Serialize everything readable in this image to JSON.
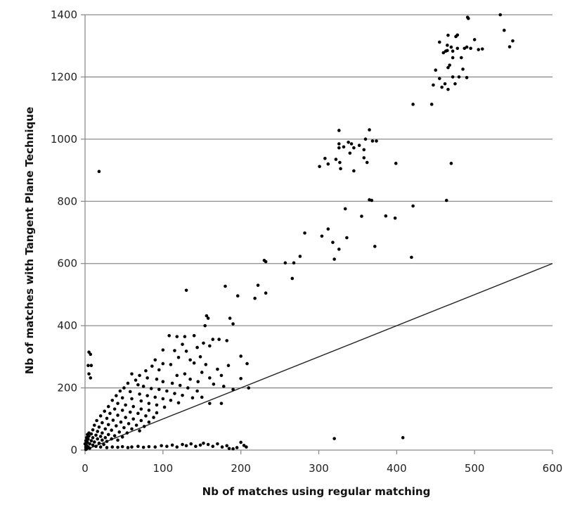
{
  "chart_data": {
    "type": "scatter",
    "title": "",
    "xlabel": "Nb of matches using regular matching",
    "ylabel": "Nb of matches with Tangent Plane Technique",
    "xlim": [
      0,
      600
    ],
    "ylim": [
      0,
      1400
    ],
    "x_ticks": [
      0,
      100,
      200,
      300,
      400,
      500,
      600
    ],
    "y_ticks": [
      0,
      200,
      400,
      600,
      800,
      1000,
      1200,
      1400
    ],
    "grid": {
      "horizontal": true,
      "vertical": false
    },
    "legend": null,
    "reference_line": {
      "label": "y = x",
      "from": [
        0,
        0
      ],
      "to": [
        600,
        600
      ]
    },
    "colors": {
      "points": "#000000",
      "grid": "#8c8c8c",
      "axis": "#8c8c8c",
      "reference_line": "#222222"
    },
    "series": [
      {
        "name": "matches",
        "points": [
          [
            533,
            1400
          ],
          [
            491,
            1392
          ],
          [
            492,
            1388
          ],
          [
            538,
            1350
          ],
          [
            549,
            1316
          ],
          [
            545,
            1297
          ],
          [
            510,
            1290
          ],
          [
            505,
            1288
          ],
          [
            478,
            1335
          ],
          [
            476,
            1330
          ],
          [
            466,
            1334
          ],
          [
            455,
            1312
          ],
          [
            465,
            1302
          ],
          [
            470,
            1296
          ],
          [
            463,
            1283
          ],
          [
            472,
            1283
          ],
          [
            490,
            1296
          ],
          [
            500,
            1320
          ],
          [
            495,
            1292
          ],
          [
            487,
            1292
          ],
          [
            478,
            1292
          ],
          [
            465,
            1285
          ],
          [
            460,
            1278
          ],
          [
            483,
            1262
          ],
          [
            472,
            1262
          ],
          [
            468,
            1238
          ],
          [
            466,
            1230
          ],
          [
            485,
            1225
          ],
          [
            450,
            1222
          ],
          [
            472,
            1200
          ],
          [
            455,
            1195
          ],
          [
            462,
            1178
          ],
          [
            447,
            1174
          ],
          [
            458,
            1167
          ],
          [
            466,
            1160
          ],
          [
            475,
            1178
          ],
          [
            480,
            1200
          ],
          [
            490,
            1198
          ],
          [
            445,
            1112
          ],
          [
            421,
            1112
          ],
          [
            326,
            1028
          ],
          [
            365,
            1030
          ],
          [
            360,
            1000
          ],
          [
            369,
            994
          ],
          [
            374,
            994
          ],
          [
            326,
            985
          ],
          [
            326,
            972
          ],
          [
            338,
            990
          ],
          [
            342,
            985
          ],
          [
            332,
            975
          ],
          [
            352,
            980
          ],
          [
            345,
            972
          ],
          [
            358,
            966
          ],
          [
            340,
            955
          ],
          [
            322,
            935
          ],
          [
            308,
            938
          ],
          [
            312,
            920
          ],
          [
            327,
            925
          ],
          [
            358,
            940
          ],
          [
            362,
            925
          ],
          [
            301,
            912
          ],
          [
            328,
            905
          ],
          [
            345,
            898
          ],
          [
            399,
            922
          ],
          [
            470,
            922
          ],
          [
            365,
            805
          ],
          [
            368,
            803
          ],
          [
            464,
            803
          ],
          [
            421,
            785
          ],
          [
            334,
            776
          ],
          [
            386,
            753
          ],
          [
            355,
            752
          ],
          [
            398,
            746
          ],
          [
            282,
            698
          ],
          [
            312,
            711
          ],
          [
            304,
            688
          ],
          [
            318,
            668
          ],
          [
            326,
            646
          ],
          [
            336,
            683
          ],
          [
            320,
            614
          ],
          [
            372,
            655
          ],
          [
            419,
            620
          ],
          [
            230,
            610
          ],
          [
            232,
            606
          ],
          [
            257,
            602
          ],
          [
            268,
            602
          ],
          [
            276,
            623
          ],
          [
            266,
            552
          ],
          [
            222,
            530
          ],
          [
            180,
            527
          ],
          [
            196,
            496
          ],
          [
            218,
            488
          ],
          [
            232,
            505
          ],
          [
            186,
            424
          ],
          [
            190,
            406
          ],
          [
            156,
            432
          ],
          [
            158,
            424
          ],
          [
            154,
            400
          ],
          [
            130,
            514
          ],
          [
            108,
            368
          ],
          [
            118,
            365
          ],
          [
            128,
            365
          ],
          [
            140,
            368
          ],
          [
            164,
            356
          ],
          [
            172,
            356
          ],
          [
            182,
            352
          ],
          [
            200,
            302
          ],
          [
            208,
            278
          ],
          [
            160,
            335
          ],
          [
            152,
            344
          ],
          [
            144,
            330
          ],
          [
            125,
            340
          ],
          [
            130,
            318
          ],
          [
            115,
            320
          ],
          [
            100,
            322
          ],
          [
            120,
            298
          ],
          [
            135,
            290
          ],
          [
            148,
            300
          ],
          [
            90,
            290
          ],
          [
            100,
            278
          ],
          [
            110,
            275
          ],
          [
            140,
            280
          ],
          [
            155,
            275
          ],
          [
            170,
            260
          ],
          [
            175,
            240
          ],
          [
            160,
            232
          ],
          [
            150,
            250
          ],
          [
            128,
            245
          ],
          [
            118,
            240
          ],
          [
            135,
            228
          ],
          [
            145,
            220
          ],
          [
            165,
            212
          ],
          [
            178,
            205
          ],
          [
            184,
            272
          ],
          [
            86,
            270
          ],
          [
            95,
            258
          ],
          [
            78,
            255
          ],
          [
            70,
            240
          ],
          [
            80,
            232
          ],
          [
            92,
            228
          ],
          [
            100,
            220
          ],
          [
            112,
            215
          ],
          [
            122,
            208
          ],
          [
            132,
            200
          ],
          [
            144,
            190
          ],
          [
            150,
            170
          ],
          [
            160,
            150
          ],
          [
            175,
            150
          ],
          [
            200,
            230
          ],
          [
            210,
            200
          ],
          [
            190,
            195
          ],
          [
            60,
            245
          ],
          [
            65,
            225
          ],
          [
            55,
            215
          ],
          [
            68,
            210
          ],
          [
            75,
            205
          ],
          [
            85,
            198
          ],
          [
            95,
            195
          ],
          [
            105,
            190
          ],
          [
            115,
            182
          ],
          [
            125,
            176
          ],
          [
            138,
            168
          ],
          [
            50,
            200
          ],
          [
            45,
            190
          ],
          [
            58,
            188
          ],
          [
            70,
            180
          ],
          [
            80,
            175
          ],
          [
            90,
            170
          ],
          [
            100,
            165
          ],
          [
            110,
            160
          ],
          [
            120,
            152
          ],
          [
            40,
            175
          ],
          [
            48,
            168
          ],
          [
            60,
            165
          ],
          [
            72,
            158
          ],
          [
            82,
            150
          ],
          [
            92,
            145
          ],
          [
            102,
            138
          ],
          [
            35,
            160
          ],
          [
            42,
            150
          ],
          [
            52,
            145
          ],
          [
            62,
            140
          ],
          [
            72,
            132
          ],
          [
            82,
            128
          ],
          [
            92,
            120
          ],
          [
            30,
            140
          ],
          [
            38,
            132
          ],
          [
            48,
            128
          ],
          [
            58,
            122
          ],
          [
            68,
            118
          ],
          [
            78,
            110
          ],
          [
            88,
            105
          ],
          [
            25,
            125
          ],
          [
            32,
            118
          ],
          [
            42,
            112
          ],
          [
            52,
            105
          ],
          [
            62,
            100
          ],
          [
            72,
            95
          ],
          [
            82,
            90
          ],
          [
            20,
            110
          ],
          [
            28,
            102
          ],
          [
            36,
            96
          ],
          [
            46,
            90
          ],
          [
            56,
            85
          ],
          [
            66,
            80
          ],
          [
            76,
            76
          ],
          [
            15,
            95
          ],
          [
            22,
            88
          ],
          [
            30,
            82
          ],
          [
            40,
            78
          ],
          [
            50,
            72
          ],
          [
            60,
            68
          ],
          [
            70,
            62
          ],
          [
            12,
            80
          ],
          [
            18,
            74
          ],
          [
            26,
            68
          ],
          [
            34,
            64
          ],
          [
            44,
            58
          ],
          [
            54,
            55
          ],
          [
            10,
            65
          ],
          [
            16,
            60
          ],
          [
            22,
            55
          ],
          [
            30,
            50
          ],
          [
            38,
            46
          ],
          [
            48,
            42
          ],
          [
            8,
            52
          ],
          [
            14,
            48
          ],
          [
            20,
            44
          ],
          [
            26,
            40
          ],
          [
            34,
            36
          ],
          [
            42,
            32
          ],
          [
            5,
            45
          ],
          [
            10,
            40
          ],
          [
            16,
            36
          ],
          [
            22,
            32
          ],
          [
            28,
            28
          ],
          [
            4,
            35
          ],
          [
            8,
            30
          ],
          [
            12,
            26
          ],
          [
            18,
            22
          ],
          [
            24,
            18
          ],
          [
            3,
            25
          ],
          [
            6,
            20
          ],
          [
            10,
            16
          ],
          [
            14,
            12
          ],
          [
            2,
            15
          ],
          [
            4,
            10
          ],
          [
            6,
            6
          ],
          [
            1,
            8
          ],
          [
            2,
            4
          ],
          [
            1,
            2
          ],
          [
            5,
            55
          ],
          [
            3,
            50
          ],
          [
            2,
            40
          ],
          [
            1,
            30
          ],
          [
            0,
            20
          ],
          [
            1,
            12
          ],
          [
            5,
            315
          ],
          [
            7,
            308
          ],
          [
            4,
            272
          ],
          [
            8,
            272
          ],
          [
            5,
            245
          ],
          [
            7,
            232
          ],
          [
            18,
            896
          ],
          [
            20,
            10
          ],
          [
            28,
            8
          ],
          [
            35,
            10
          ],
          [
            42,
            9
          ],
          [
            48,
            11
          ],
          [
            55,
            8
          ],
          [
            60,
            10
          ],
          [
            68,
            12
          ],
          [
            75,
            9
          ],
          [
            82,
            11
          ],
          [
            90,
            10
          ],
          [
            98,
            14
          ],
          [
            105,
            12
          ],
          [
            112,
            16
          ],
          [
            118,
            10
          ],
          [
            125,
            18
          ],
          [
            130,
            14
          ],
          [
            136,
            20
          ],
          [
            142,
            12
          ],
          [
            148,
            16
          ],
          [
            152,
            22
          ],
          [
            158,
            18
          ],
          [
            164,
            12
          ],
          [
            170,
            20
          ],
          [
            176,
            10
          ],
          [
            182,
            14
          ],
          [
            195,
            8
          ],
          [
            200,
            25
          ],
          [
            204,
            15
          ],
          [
            207,
            10
          ],
          [
            185,
            5
          ],
          [
            190,
            4
          ],
          [
            320,
            37
          ],
          [
            408,
            40
          ]
        ]
      }
    ]
  }
}
